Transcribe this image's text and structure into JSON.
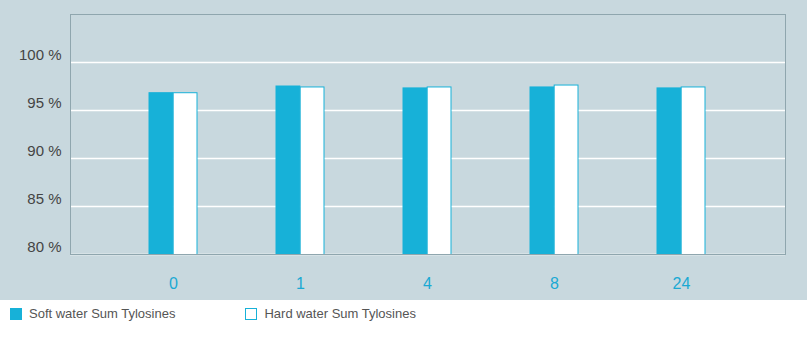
{
  "chart_data": {
    "type": "bar",
    "categories": [
      "0",
      "1",
      "4",
      "8",
      "24"
    ],
    "series": [
      {
        "name": "Soft water Sum Tylosines",
        "color": "#17b1d8",
        "values": [
          96.8,
          97.5,
          97.3,
          97.4,
          97.3
        ]
      },
      {
        "name": "Hard water Sum Tylosines",
        "color": "#ffffff",
        "values": [
          96.8,
          97.4,
          97.4,
          97.6,
          97.4
        ]
      }
    ],
    "ylim": [
      80,
      105
    ],
    "yticks": [
      {
        "value": 80,
        "label": "80 %"
      },
      {
        "value": 85,
        "label": "85 %"
      },
      {
        "value": 90,
        "label": "90 %"
      },
      {
        "value": 95,
        "label": "95 %"
      },
      {
        "value": 100,
        "label": "100 %"
      }
    ],
    "grid": true,
    "legend": "bottom-left"
  }
}
